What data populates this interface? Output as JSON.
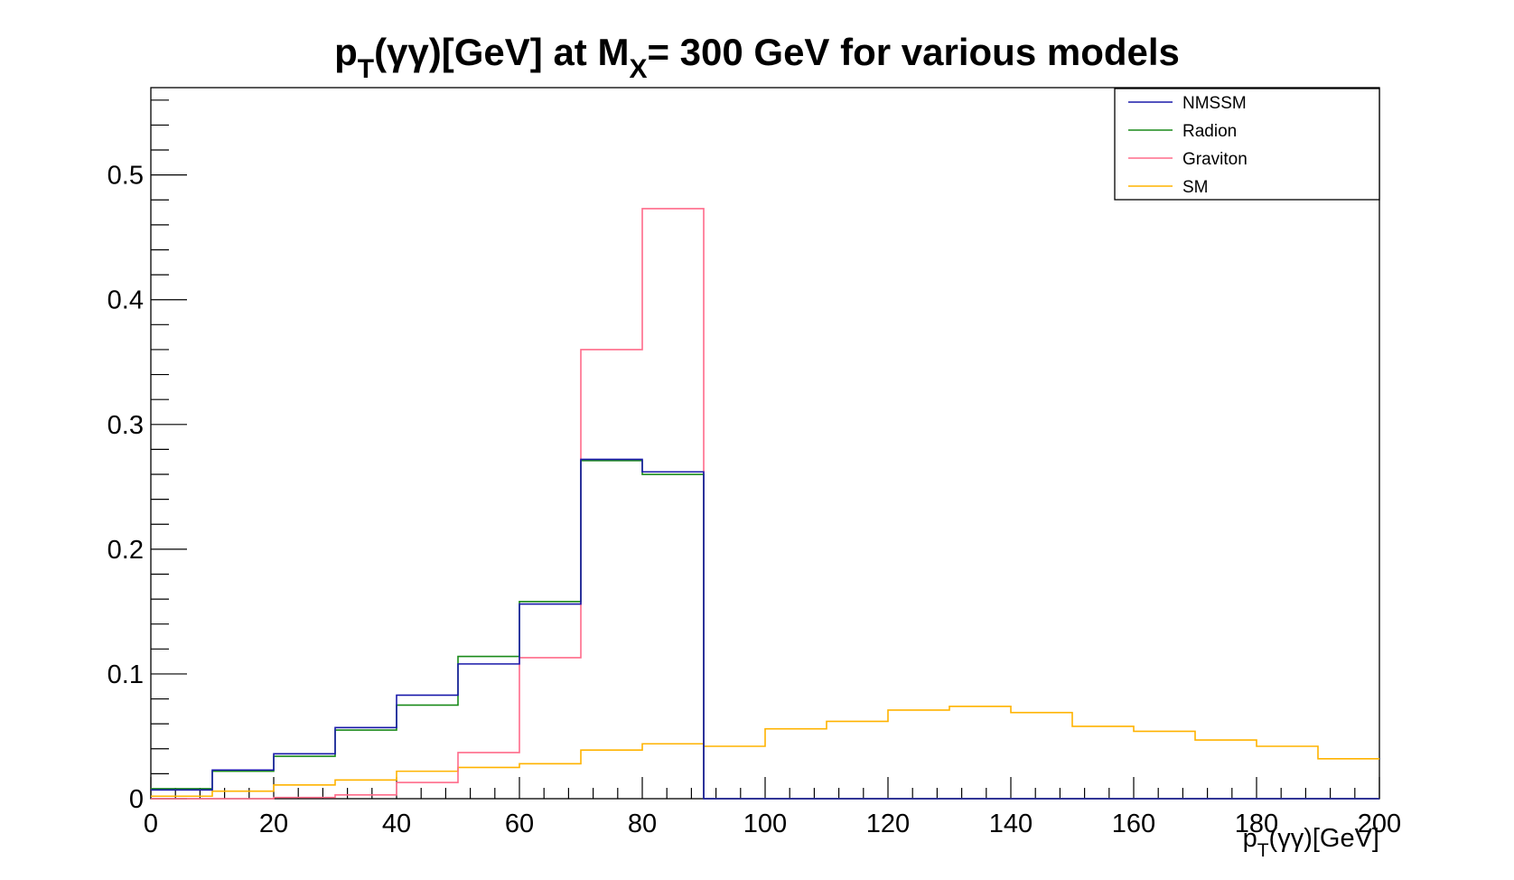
{
  "chart_data": {
    "type": "line",
    "title": {
      "p": "p",
      "p_sub": "T",
      "mid": "(γγ)[GeV] at M",
      "m_sub": "X",
      "end": "= 300 GeV for various models"
    },
    "xlabel": {
      "p": "p",
      "p_sub": "T",
      "rest": "(γγ)[GeV]"
    },
    "ylabel": "",
    "xlim": [
      0,
      200
    ],
    "ylim": [
      0,
      0.57
    ],
    "x_ticks": [
      "0",
      "20",
      "40",
      "60",
      "80",
      "100",
      "120",
      "140",
      "160",
      "180",
      "200"
    ],
    "y_ticks": [
      "0",
      "0.1",
      "0.2",
      "0.3",
      "0.4",
      "0.5"
    ],
    "grid": false,
    "legend_position": "top-right",
    "bin_edges": [
      0,
      10,
      20,
      30,
      40,
      50,
      60,
      70,
      80,
      90,
      100,
      110,
      120,
      130,
      140,
      150,
      160,
      170,
      180,
      190,
      200
    ],
    "series": [
      {
        "name": "NMSSM",
        "color": "#1a1aaa",
        "values": [
          0.007,
          0.023,
          0.036,
          0.057,
          0.083,
          0.108,
          0.156,
          0.272,
          0.262,
          0,
          0,
          0,
          0,
          0,
          0,
          0,
          0,
          0,
          0,
          0
        ]
      },
      {
        "name": "Radion",
        "color": "#1a8a1a",
        "values": [
          0.008,
          0.022,
          0.034,
          0.055,
          0.075,
          0.114,
          0.158,
          0.271,
          0.26,
          0,
          0,
          0,
          0,
          0,
          0,
          0,
          0,
          0,
          0,
          0
        ]
      },
      {
        "name": "Graviton",
        "color": "#ff6b8a",
        "values": [
          0.0,
          0.0,
          0.001,
          0.003,
          0.013,
          0.037,
          0.113,
          0.36,
          0.473,
          0,
          0,
          0,
          0,
          0,
          0,
          0,
          0,
          0,
          0,
          0
        ]
      },
      {
        "name": "SM",
        "color": "#ffb300",
        "values": [
          0.002,
          0.006,
          0.011,
          0.015,
          0.022,
          0.025,
          0.028,
          0.039,
          0.044,
          0.042,
          0.056,
          0.062,
          0.071,
          0.074,
          0.069,
          0.058,
          0.054,
          0.047,
          0.042,
          0.032
        ]
      }
    ]
  }
}
